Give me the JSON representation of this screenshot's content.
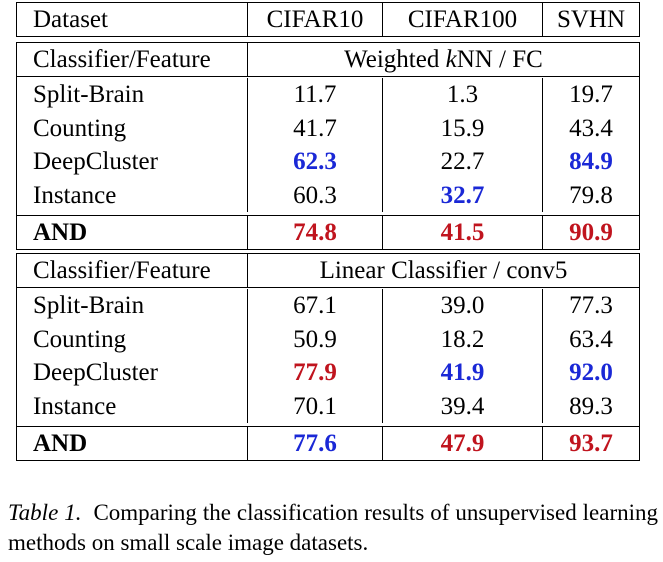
{
  "header": {
    "dataset_label": "Dataset",
    "cols": [
      "CIFAR10",
      "CIFAR100",
      "SVHN"
    ]
  },
  "section1": {
    "feature_label": "Classifier/Feature",
    "method_prefix": "Weighted ",
    "method_k": "k",
    "method_suffix": "NN / FC",
    "rows": [
      {
        "name": "Split-Brain",
        "v": [
          "11.7",
          "1.3",
          "19.7"
        ]
      },
      {
        "name": "Counting",
        "v": [
          "41.7",
          "15.9",
          "43.4"
        ]
      },
      {
        "name": "DeepCluster",
        "v": [
          "62.3",
          "22.7",
          "84.9"
        ]
      },
      {
        "name": "Instance",
        "v": [
          "60.3",
          "32.7",
          "79.8"
        ]
      }
    ],
    "and_row": {
      "name": "AND",
      "v": [
        "74.8",
        "41.5",
        "90.9"
      ]
    }
  },
  "section2": {
    "feature_label": "Classifier/Feature",
    "method": "Linear Classifier / conv5",
    "rows": [
      {
        "name": "Split-Brain",
        "v": [
          "67.1",
          "39.0",
          "77.3"
        ]
      },
      {
        "name": "Counting",
        "v": [
          "50.9",
          "18.2",
          "63.4"
        ]
      },
      {
        "name": "DeepCluster",
        "v": [
          "77.9",
          "41.9",
          "92.0"
        ]
      },
      {
        "name": "Instance",
        "v": [
          "70.1",
          "39.4",
          "89.3"
        ]
      }
    ],
    "and_row": {
      "name": "AND",
      "v": [
        "77.6",
        "47.9",
        "93.7"
      ]
    }
  },
  "colors": {
    "best": "#c0141e",
    "second": "#1a28d6"
  },
  "caption": {
    "label": "Table 1.",
    "text": "Comparing the classification results of unsupervised learning methods on small scale image datasets."
  }
}
